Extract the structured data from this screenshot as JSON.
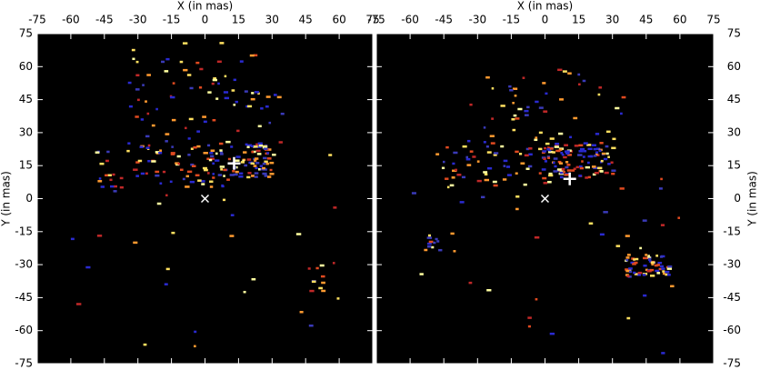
{
  "chart_data": [
    {
      "type": "scatter",
      "xlabel": "X (in mas)",
      "ylabel": "Y (in mas)",
      "yaxis_side": "left",
      "xlim": [
        -75,
        75
      ],
      "ylim": [
        -75,
        75
      ],
      "xticks": [
        -75,
        -60,
        -45,
        -30,
        -15,
        0,
        15,
        30,
        45,
        60,
        75
      ],
      "yticks": [
        -75,
        -60,
        -45,
        -30,
        -15,
        0,
        15,
        30,
        45,
        60,
        75
      ],
      "series": [
        {
          "marker": "x",
          "color": "#ffffff",
          "x": [
            0
          ],
          "values": [
            0
          ]
        },
        {
          "marker": "+",
          "color": "#ffffff",
          "x": [
            13
          ],
          "values": [
            16
          ]
        }
      ]
    },
    {
      "type": "scatter",
      "xlabel": "X (in mas)",
      "ylabel": "Y (in mas)",
      "yaxis_side": "right",
      "xlim": [
        -75,
        75
      ],
      "ylim": [
        -75,
        75
      ],
      "xticks": [
        -75,
        -60,
        -45,
        -30,
        -15,
        0,
        15,
        30,
        45,
        60,
        75
      ],
      "yticks": [
        -75,
        -60,
        -45,
        -30,
        -15,
        0,
        15,
        30,
        45,
        60,
        75
      ],
      "series": [
        {
          "marker": "x",
          "color": "#ffffff",
          "x": [
            0
          ],
          "values": [
            0
          ]
        },
        {
          "marker": "+",
          "color": "#ffffff",
          "x": [
            11
          ],
          "values": [
            9
          ]
        }
      ]
    }
  ]
}
